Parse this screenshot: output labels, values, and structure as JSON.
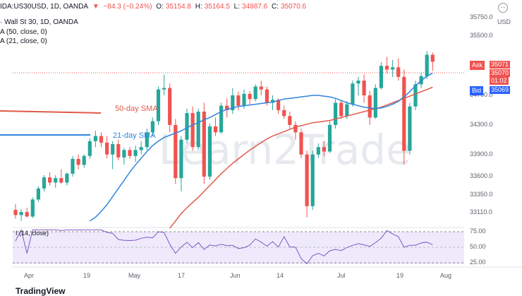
{
  "header": {
    "symbol": "IDA:US30USD, 1D, OANDA",
    "change_icon": "triangle-down",
    "change": "−84.3 (−0.24%)",
    "o_label": "O:",
    "o_value": "35154.8",
    "h_label": "H:",
    "h_value": "35164.5",
    "l_label": "L:",
    "l_value": "34887.6",
    "c_label": "C:",
    "c_value": "35070.6"
  },
  "instrument_line": "Wall St 30, 1D, OANDA",
  "indicators": [
    "A (50, close, 0)",
    "A (21, close, 0)"
  ],
  "rsi_label": "I (14, close)",
  "currency": "USD",
  "annotations": {
    "ma50": "50-day SMA",
    "ma21": "21-day SMA"
  },
  "watermark": "Learn2Trade",
  "price_tags": {
    "ask_label": "Ask",
    "ask_value": "35071",
    "current_value": "35070",
    "countdown": "01:02",
    "bid_label": "Bid",
    "bid_value": "35069"
  },
  "colors": {
    "up": "#26a69a",
    "down": "#ef5350",
    "ma50": "#e05a4a",
    "ma21": "#2e86de",
    "rsi": "#7e57c2",
    "ask": "#ef5350",
    "bid": "#2962ff"
  },
  "chart_data": {
    "type": "candlestick",
    "y_ticks": [
      "35750.0",
      "35500.0",
      "34700.0",
      "34300.0",
      "33900.0",
      "33600.0",
      "33350.0",
      "33110.0"
    ],
    "ylim": [
      32950,
      35800
    ],
    "x_ticks": [
      "Apr",
      "19",
      "May",
      "17",
      "Jun",
      "14",
      "Jul",
      "19",
      "Aug"
    ],
    "rsi_ticks": [
      "75.00",
      "50.00",
      "25.00"
    ],
    "rsi_ylim": [
      20,
      80
    ],
    "ohlc": [
      [
        33150,
        33230,
        33030,
        33080
      ],
      [
        33080,
        33160,
        33000,
        33120
      ],
      [
        33120,
        33180,
        33050,
        33060
      ],
      [
        33060,
        33320,
        33040,
        33290
      ],
      [
        33290,
        33470,
        33260,
        33440
      ],
      [
        33440,
        33620,
        33400,
        33590
      ],
      [
        33590,
        33660,
        33480,
        33520
      ],
      [
        33520,
        33620,
        33450,
        33580
      ],
      [
        33580,
        33700,
        33500,
        33520
      ],
      [
        33520,
        33660,
        33480,
        33640
      ],
      [
        33640,
        33880,
        33600,
        33840
      ],
      [
        33840,
        33900,
        33700,
        33760
      ],
      [
        33760,
        33900,
        33720,
        33880
      ],
      [
        33880,
        34120,
        33840,
        34080
      ],
      [
        34080,
        34220,
        34000,
        34150
      ],
      [
        34150,
        34200,
        34000,
        34060
      ],
      [
        34060,
        34150,
        33850,
        33900
      ],
      [
        33900,
        34080,
        33700,
        34040
      ],
      [
        34040,
        34100,
        33820,
        33860
      ],
      [
        33860,
        33990,
        33760,
        33960
      ],
      [
        33960,
        34000,
        33840,
        33880
      ],
      [
        33880,
        34020,
        33800,
        33960
      ],
      [
        33960,
        34080,
        33900,
        34000
      ],
      [
        34000,
        34250,
        33960,
        34200
      ],
      [
        34200,
        34400,
        34150,
        34350
      ],
      [
        34350,
        34820,
        34300,
        34780
      ],
      [
        34780,
        34980,
        34700,
        34800
      ],
      [
        34800,
        34860,
        34200,
        34300
      ],
      [
        34300,
        34380,
        33500,
        33580
      ],
      [
        33580,
        34150,
        33400,
        34100
      ],
      [
        34100,
        34520,
        34050,
        34460
      ],
      [
        34460,
        34550,
        33950,
        34000
      ],
      [
        34000,
        34520,
        33960,
        34480
      ],
      [
        34480,
        34600,
        33500,
        33600
      ],
      [
        33600,
        34320,
        33560,
        34280
      ],
      [
        34280,
        34400,
        34150,
        34200
      ],
      [
        34200,
        34600,
        34180,
        34560
      ],
      [
        34560,
        34660,
        34400,
        34500
      ],
      [
        34500,
        34800,
        34450,
        34700
      ],
      [
        34700,
        34750,
        34500,
        34560
      ],
      [
        34560,
        34780,
        34520,
        34720
      ],
      [
        34720,
        34760,
        34580,
        34650
      ],
      [
        34650,
        34850,
        34620,
        34820
      ],
      [
        34820,
        34900,
        34700,
        34780
      ],
      [
        34780,
        34820,
        34560,
        34600
      ],
      [
        34600,
        34700,
        34500,
        34640
      ],
      [
        34640,
        34660,
        34450,
        34500
      ],
      [
        34500,
        34560,
        34380,
        34420
      ],
      [
        34420,
        34480,
        34250,
        34300
      ],
      [
        34300,
        34350,
        34100,
        34200
      ],
      [
        34200,
        34250,
        33850,
        33900
      ],
      [
        33900,
        33950,
        33050,
        33200
      ],
      [
        33200,
        33950,
        33150,
        33900
      ],
      [
        33900,
        34050,
        33850,
        34000
      ],
      [
        34000,
        34080,
        33880,
        33940
      ],
      [
        33940,
        34350,
        33920,
        34300
      ],
      [
        34300,
        34650,
        34250,
        34600
      ],
      [
        34600,
        34640,
        34380,
        34420
      ],
      [
        34420,
        34620,
        34380,
        34580
      ],
      [
        34580,
        34900,
        34550,
        34860
      ],
      [
        34860,
        34950,
        34700,
        34900
      ],
      [
        34900,
        34980,
        34600,
        34700
      ],
      [
        34700,
        34760,
        34300,
        34400
      ],
      [
        34400,
        34850,
        34380,
        34800
      ],
      [
        34800,
        35150,
        34780,
        35100
      ],
      [
        35100,
        35220,
        35000,
        35050
      ],
      [
        35050,
        35180,
        34950,
        35080
      ],
      [
        35080,
        35200,
        34900,
        34950
      ],
      [
        34950,
        35050,
        33760,
        33950
      ],
      [
        33950,
        34600,
        33900,
        34550
      ],
      [
        34550,
        34900,
        34500,
        34850
      ],
      [
        34850,
        35000,
        34800,
        34960
      ],
      [
        34960,
        35300,
        34920,
        35250
      ],
      [
        35250,
        35280,
        35030,
        35154.8
      ]
    ],
    "sma21": [
      33000,
      33050,
      33130,
      33220,
      33330,
      33440,
      33550,
      33660,
      33760,
      33850,
      33940,
      34020,
      34080,
      34130,
      34160,
      34190,
      34220,
      34260,
      34300,
      34330,
      34370,
      34400,
      34440,
      34480,
      34510,
      34530,
      34550,
      34560,
      34570,
      34580,
      34590,
      34600,
      34610,
      34630,
      34650,
      34660,
      34670,
      34680,
      34690,
      34700,
      34700,
      34690,
      34680,
      34660,
      34630,
      34600,
      34580,
      34560,
      34540,
      34530,
      34520,
      34530,
      34550,
      34580,
      34620,
      34680,
      34750,
      34830,
      34900,
      34960,
      35000
    ],
    "sma50": [
      32900,
      33000,
      33100,
      33180,
      33250,
      33320,
      33400,
      33480,
      33560,
      33640,
      33710,
      33780,
      33840,
      33900,
      33960,
      34010,
      34060,
      34110,
      34150,
      34180,
      34210,
      34240,
      34270,
      34290,
      34310,
      34330,
      34340,
      34350,
      34360,
      34380,
      34400,
      34420,
      34440,
      34460,
      34480,
      34500,
      34520,
      34540,
      34570,
      34600,
      34630,
      34660,
      34690,
      34720,
      34750,
      34780,
      34810
    ]
  }
}
